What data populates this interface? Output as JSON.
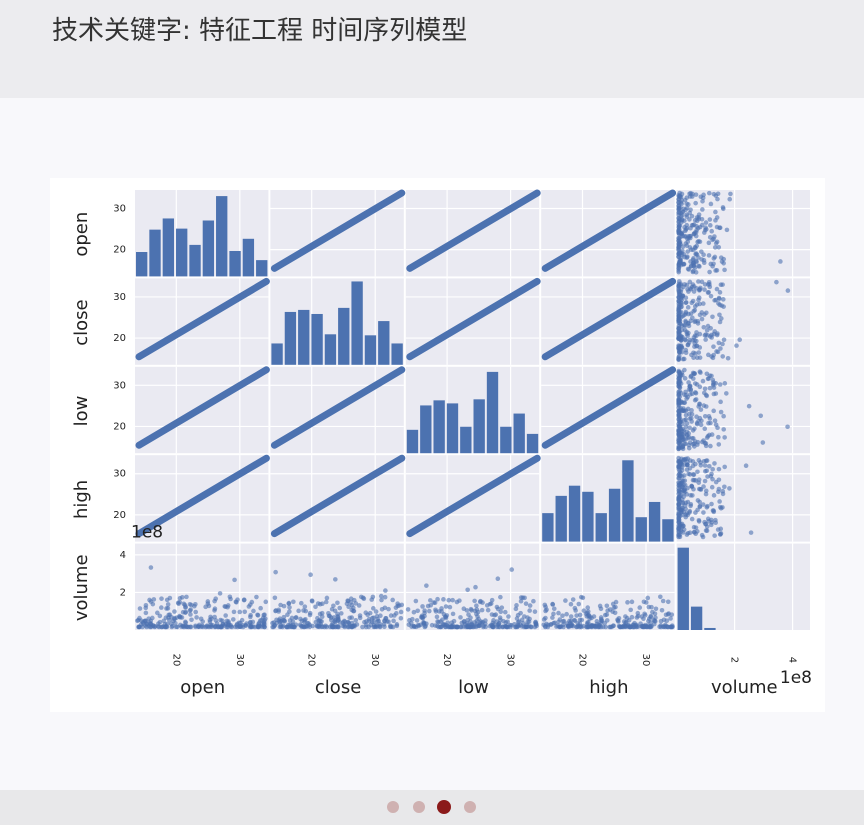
{
  "header": {
    "title": "技术关键字: 特征工程 时间序列模型"
  },
  "chart_data": {
    "type": "scatter_matrix",
    "color": "#4c72b0",
    "grid": true,
    "axes": [
      {
        "name": "open",
        "lim": [
          13.5,
          34.5
        ],
        "ticks": [
          20,
          30
        ]
      },
      {
        "name": "close",
        "lim": [
          13.5,
          34.5
        ],
        "ticks": [
          20,
          30
        ]
      },
      {
        "name": "low",
        "lim": [
          13.5,
          34.5
        ],
        "ticks": [
          20,
          30
        ]
      },
      {
        "name": "high",
        "lim": [
          13.5,
          34.5
        ],
        "ticks": [
          20,
          30
        ]
      },
      {
        "name": "volume",
        "lim": [
          0,
          4.6
        ],
        "ticks": [
          2,
          4
        ],
        "offset_label": "1e8"
      }
    ],
    "hist_ylim": [
      0,
      85
    ],
    "histograms": [
      [
        24,
        46,
        57,
        47,
        31,
        55,
        79,
        25,
        37,
        16
      ],
      [
        21,
        52,
        54,
        50,
        30,
        56,
        82,
        29,
        43,
        21
      ],
      [
        23,
        47,
        52,
        49,
        26,
        53,
        80,
        26,
        39,
        19
      ],
      [
        28,
        45,
        55,
        49,
        28,
        52,
        80,
        24,
        39,
        22
      ],
      [
        81,
        23,
        2,
        0,
        0,
        0,
        0,
        0,
        0,
        0
      ]
    ]
  }
}
